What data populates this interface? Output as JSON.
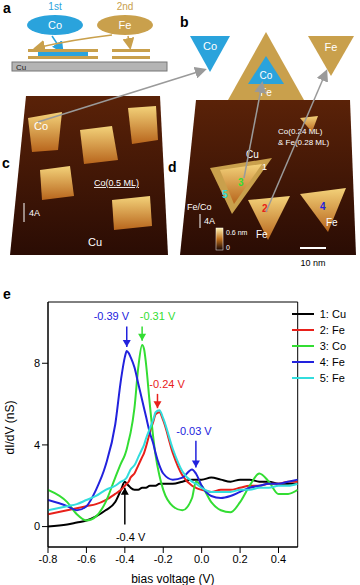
{
  "figure": {
    "a": {
      "label": "a",
      "steps": [
        "1st",
        "2nd"
      ],
      "elements": [
        "Co",
        "Fe"
      ],
      "substrate": "Cu"
    },
    "b": {
      "label": "b",
      "left": "Co",
      "center_core": "Co",
      "center_shell": "Fe",
      "right": "Fe"
    },
    "c": {
      "label": "c",
      "island": "Co",
      "coverage": "Co(0.5 ML)",
      "step": "4A",
      "substrate": "Cu"
    },
    "d": {
      "label": "d",
      "substrate": "Cu",
      "coverage": [
        "Co(0.24 ML)",
        "& Fe(0.28 ML)"
      ],
      "mixed": "Fe/Co",
      "step": "4A",
      "islands": [
        "Fe",
        "Fe"
      ],
      "sites": [
        {
          "text": "1",
          "color": "#ffffff"
        },
        {
          "text": "2",
          "color": "#e8201a"
        },
        {
          "text": "3",
          "color": "#33dd33"
        },
        {
          "text": "4",
          "color": "#2222dd"
        },
        {
          "text": "5",
          "color": "#33dddd"
        }
      ],
      "scale_bar": "10 nm",
      "colorbar_labels": [
        "0.6 nm",
        "0"
      ]
    },
    "e": {
      "label": "e"
    }
  },
  "chart_data": {
    "type": "line",
    "x_label": "bias voltage (V)",
    "y_label": "dI/dV (nS)",
    "x": [
      -0.8,
      -0.7,
      -0.65,
      -0.6,
      -0.55,
      -0.5,
      -0.45,
      -0.42,
      -0.4,
      -0.39,
      -0.38,
      -0.37,
      -0.35,
      -0.33,
      -0.31,
      -0.3,
      -0.29,
      -0.27,
      -0.25,
      -0.24,
      -0.22,
      -0.2,
      -0.15,
      -0.1,
      -0.05,
      -0.03,
      0,
      0.05,
      0.1,
      0.15,
      0.2,
      0.25,
      0.3,
      0.35,
      0.4,
      0.45,
      0.5
    ],
    "series": [
      {
        "name": "1: Cu",
        "color": "#000000",
        "values": [
          0.0,
          0.1,
          0.2,
          0.3,
          0.5,
          0.8,
          1.2,
          1.8,
          2.2,
          2.1,
          2.0,
          1.9,
          1.8,
          1.8,
          1.9,
          1.9,
          1.9,
          2.0,
          2.0,
          2.0,
          2.1,
          2.1,
          2.1,
          2.2,
          2.3,
          2.3,
          2.3,
          2.4,
          2.3,
          2.2,
          2.3,
          2.3,
          2.2,
          2.2,
          2.1,
          2.1,
          2.1
        ]
      },
      {
        "name": "2: Fe",
        "color": "#e8201a",
        "values": [
          0.6,
          0.8,
          0.9,
          1.0,
          1.1,
          1.3,
          1.6,
          1.8,
          2.0,
          2.1,
          2.2,
          2.4,
          2.6,
          3.0,
          3.4,
          3.6,
          3.9,
          4.6,
          5.2,
          5.5,
          5.6,
          5.2,
          3.6,
          2.5,
          2.0,
          1.9,
          1.8,
          1.7,
          1.8,
          1.8,
          1.9,
          2.0,
          2.0,
          2.1,
          2.1,
          2.2,
          2.2
        ]
      },
      {
        "name": "3: Co",
        "color": "#33dd33",
        "values": [
          1.8,
          1.2,
          0.6,
          0.3,
          0.5,
          1.2,
          2.4,
          3.1,
          3.5,
          3.8,
          4.2,
          4.6,
          5.8,
          7.8,
          8.9,
          8.7,
          8.0,
          6.0,
          4.2,
          3.5,
          2.5,
          1.8,
          1.0,
          0.8,
          1.4,
          2.2,
          2.0,
          1.2,
          0.8,
          0.7,
          1.2,
          2.0,
          2.6,
          2.2,
          1.6,
          1.6,
          1.8
        ]
      },
      {
        "name": "4: Fe",
        "color": "#2222dd",
        "values": [
          1.3,
          1.0,
          0.8,
          1.0,
          1.8,
          3.0,
          5.0,
          7.2,
          8.3,
          8.6,
          8.5,
          8.3,
          7.8,
          7.0,
          6.2,
          5.8,
          5.4,
          4.6,
          4.0,
          3.6,
          3.0,
          2.6,
          2.3,
          2.4,
          2.8,
          2.6,
          2.0,
          1.5,
          1.4,
          1.5,
          1.7,
          1.9,
          2.0,
          2.1,
          2.1,
          2.2,
          2.3
        ]
      },
      {
        "name": "5: Fe",
        "color": "#33dddd",
        "values": [
          0.8,
          1.0,
          1.1,
          1.3,
          1.5,
          1.8,
          2.0,
          2.2,
          2.3,
          2.4,
          2.6,
          2.8,
          3.0,
          3.4,
          3.8,
          4.0,
          4.3,
          4.8,
          5.3,
          5.6,
          5.7,
          5.3,
          3.8,
          2.7,
          2.2,
          2.1,
          1.9,
          1.7,
          1.7,
          1.7,
          1.8,
          1.8,
          1.9,
          1.9,
          2.0,
          2.0,
          2.1
        ]
      }
    ],
    "xlim": [
      -0.8,
      0.5
    ],
    "xticks": [
      -0.8,
      -0.6,
      -0.4,
      -0.2,
      {
        "value": 0,
        "label": "0.0"
      },
      0.2,
      0.4
    ],
    "ylim": [
      -1,
      11
    ],
    "yticks": [
      0,
      4,
      8
    ],
    "grid": false,
    "legend": "upper right",
    "annotations": [
      {
        "text": "-0.39 V",
        "x": -0.39,
        "y": 8.8,
        "text_x": -0.47,
        "text_y": 10.3,
        "color": "#2222dd"
      },
      {
        "text": "-0.31 V",
        "x": -0.31,
        "y": 9.1,
        "text_x": -0.23,
        "text_y": 10.3,
        "color": "#33dd33"
      },
      {
        "text": "-0.24 V",
        "x": -0.23,
        "y": 5.8,
        "text_x": -0.18,
        "text_y": 7.0,
        "color": "#e8201a"
      },
      {
        "text": "-0.03 V",
        "x": -0.03,
        "y": 2.9,
        "text_x": -0.04,
        "text_y": 4.7,
        "color": "#2222dd"
      },
      {
        "text": "-0.4 V",
        "x": -0.4,
        "y": 1.9,
        "text_x": -0.37,
        "text_y": -0.5,
        "color": "#000000"
      }
    ]
  }
}
